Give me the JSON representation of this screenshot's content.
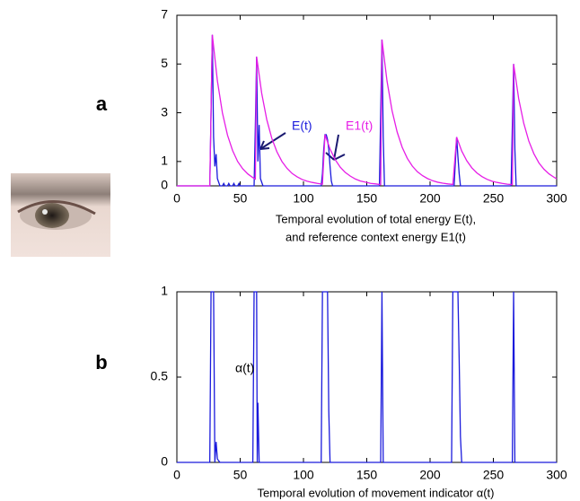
{
  "chart_data": [
    {
      "type": "line",
      "panel": "a",
      "xlabel": [
        "Temporal evolution of  total energy E(t),",
        "and  reference context energy E1(t)"
      ],
      "xlim": [
        0,
        300
      ],
      "xticks": [
        0,
        50,
        100,
        150,
        200,
        250,
        300
      ],
      "ylim": [
        0,
        7
      ],
      "yticks": [
        0,
        1,
        3,
        5,
        7
      ],
      "series": [
        {
          "name": "E(t)",
          "color": "#1a1adc",
          "x": [
            0,
            26,
            27,
            28,
            29,
            30,
            31,
            32,
            34,
            36,
            37,
            38,
            40,
            41,
            42,
            44,
            45,
            46,
            48,
            49,
            50,
            60,
            61,
            62,
            63,
            64,
            65,
            66,
            68,
            113,
            114,
            115,
            116,
            117,
            118,
            119,
            120,
            121,
            122,
            123,
            159,
            160,
            161,
            162,
            163,
            164,
            218,
            219,
            220,
            221,
            222,
            223,
            224,
            263,
            264,
            265,
            266,
            267,
            268,
            300
          ],
          "values": [
            0,
            0,
            3,
            6.2,
            2,
            0.8,
            1.3,
            0.3,
            0,
            0,
            0.1,
            0,
            0,
            0.1,
            0,
            0,
            0.1,
            0,
            0,
            0.1,
            0,
            0,
            0,
            2.5,
            5.3,
            1,
            2.5,
            0.3,
            0,
            0,
            0,
            0.5,
            1.5,
            2.1,
            2.1,
            1.9,
            1.5,
            0.8,
            0.2,
            0,
            0,
            0,
            3,
            6.0,
            2,
            0,
            0,
            0,
            1,
            2.0,
            1.2,
            0.5,
            0,
            0,
            0,
            2.5,
            5.0,
            1.5,
            0,
            0
          ]
        },
        {
          "name": "E1(t)",
          "color": "#e61ee6",
          "x": [
            0,
            26,
            28,
            32,
            36,
            40,
            44,
            48,
            52,
            56,
            60,
            62,
            63,
            67,
            71,
            75,
            79,
            83,
            87,
            91,
            95,
            99,
            103,
            107,
            111,
            115,
            117,
            121,
            125,
            129,
            133,
            137,
            141,
            145,
            149,
            153,
            157,
            161,
            162,
            166,
            170,
            174,
            178,
            182,
            186,
            190,
            194,
            198,
            202,
            206,
            210,
            214,
            218,
            221,
            225,
            229,
            233,
            237,
            241,
            245,
            249,
            253,
            257,
            261,
            265,
            266,
            270,
            274,
            278,
            282,
            286,
            290,
            294,
            298,
            300
          ],
          "values": [
            0,
            0,
            6.2,
            4.31,
            2.99,
            2.08,
            1.45,
            1.0,
            0.7,
            0.49,
            0.34,
            0.28,
            5.3,
            3.8,
            2.72,
            1.95,
            1.4,
            1.0,
            0.72,
            0.51,
            0.37,
            0.26,
            0.19,
            0.14,
            0.1,
            0.07,
            2.1,
            1.51,
            1.08,
            0.77,
            0.55,
            0.4,
            0.28,
            0.2,
            0.15,
            0.1,
            0.08,
            0.05,
            6.0,
            4.3,
            3.08,
            2.21,
            1.58,
            1.13,
            0.81,
            0.58,
            0.42,
            0.3,
            0.21,
            0.15,
            0.11,
            0.08,
            0.06,
            2.0,
            1.43,
            1.03,
            0.74,
            0.53,
            0.38,
            0.27,
            0.19,
            0.14,
            0.1,
            0.07,
            0.05,
            5.0,
            3.58,
            2.57,
            1.84,
            1.32,
            0.94,
            0.68,
            0.49,
            0.35,
            0.29
          ]
        }
      ]
    },
    {
      "type": "line",
      "panel": "b",
      "xlabel": [
        "Temporal evolution of  movement indicator α(t)"
      ],
      "xlim": [
        0,
        300
      ],
      "xticks": [
        0,
        50,
        100,
        150,
        200,
        250,
        300
      ],
      "ylim": [
        0,
        1
      ],
      "yticks": [
        0,
        0.5,
        1
      ],
      "series": [
        {
          "name": "α(t)",
          "color": "#1a1adc",
          "x": [
            0,
            26,
            27,
            29,
            30,
            31,
            32,
            34,
            60,
            61,
            63,
            63.5,
            64,
            65,
            66,
            114,
            115,
            119,
            120,
            121,
            161,
            162,
            163,
            217,
            218,
            222,
            223,
            224,
            225,
            265,
            266,
            267,
            300
          ],
          "values": [
            0,
            0,
            1,
            1,
            0,
            0.12,
            0.02,
            0,
            0,
            1,
            1,
            0,
            0.35,
            0,
            0,
            0,
            1,
            1,
            0.3,
            0,
            0,
            1,
            0,
            0,
            1,
            1,
            0.6,
            0.15,
            0,
            0,
            1,
            0,
            0
          ]
        }
      ]
    }
  ]
}
